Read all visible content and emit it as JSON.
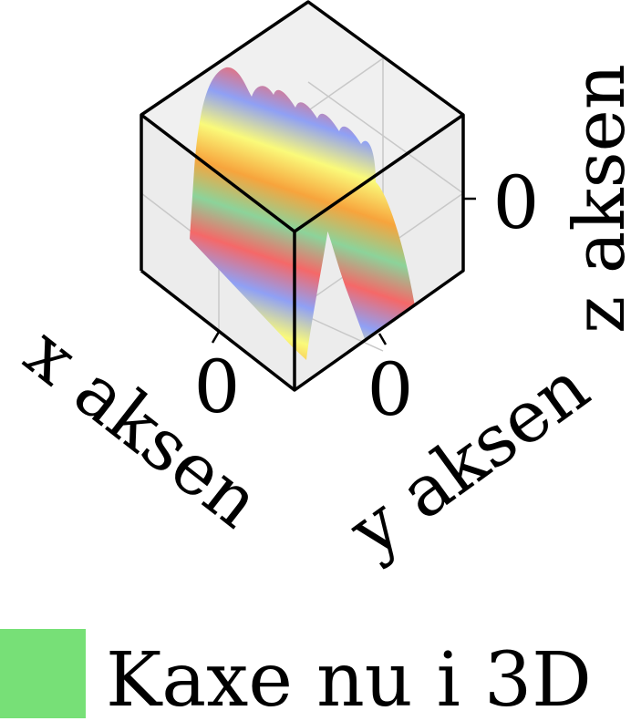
{
  "chart_data": {
    "type": "surface",
    "view": "isometric",
    "xlabel": "x aksen",
    "ylabel": "y aksen",
    "zlabel": "z aksen",
    "x_ticks": [
      "0"
    ],
    "y_ticks": [
      "0"
    ],
    "z_ticks": [
      "0"
    ],
    "legend": {
      "entries": [
        {
          "label": "Kaxe nu i 3D",
          "color": "#77e077"
        }
      ],
      "placement": "bottom"
    },
    "grid": true,
    "colormap": [
      "#f7a43c",
      "#fafa7a",
      "#8fa0f5",
      "#f56868",
      "#8cd39a"
    ]
  }
}
